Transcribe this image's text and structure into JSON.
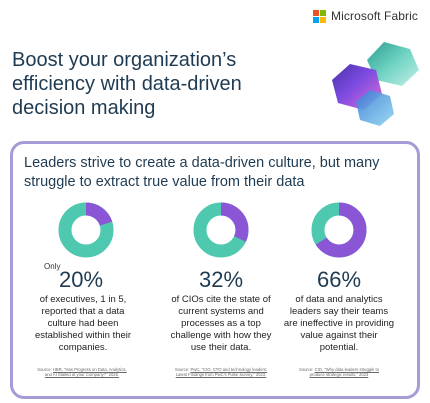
{
  "brand": {
    "name": "Microsoft Fabric",
    "logo_colors": [
      "#f25022",
      "#7fba00",
      "#00a4ef",
      "#ffb900"
    ]
  },
  "headline": "Boost your organization’s efficiency with data-driven decision making",
  "card": {
    "heading": "Leaders strive to create a data-driven culture, but many struggle to extract true value from their data",
    "stats": [
      {
        "prefix": "Only",
        "value": "20%",
        "fraction": 0.2,
        "description": "of executives, 1 in 5, reported that a data culture had been established within their companies.",
        "source_label": "Source:",
        "source_text": "HBR, “Has Progress on Data, Analytics, and AI Stalled at your Company?” 2025."
      },
      {
        "prefix": "",
        "value": "32%",
        "fraction": 0.32,
        "description": "of CIOs cite the state of current systems and processes as a top challenge with how they use their data.",
        "source_label": "Source:",
        "source_text": "PwC, “CIO, CTO and technology leaders: Latest Findings from PwC’s Pulse Survey,” 2023."
      },
      {
        "prefix": "",
        "value": "66%",
        "fraction": 0.66,
        "description": "of data and analytics leaders say their teams are ineffective in providing value against their potential.",
        "source_label": "Source:",
        "source_text": "CIO, “Why data leaders struggle to produce strategic results,” 2023"
      }
    ],
    "colors": {
      "fill": "#8a56d6",
      "track": "#4ec9b0",
      "border": "#a69bd6"
    }
  }
}
